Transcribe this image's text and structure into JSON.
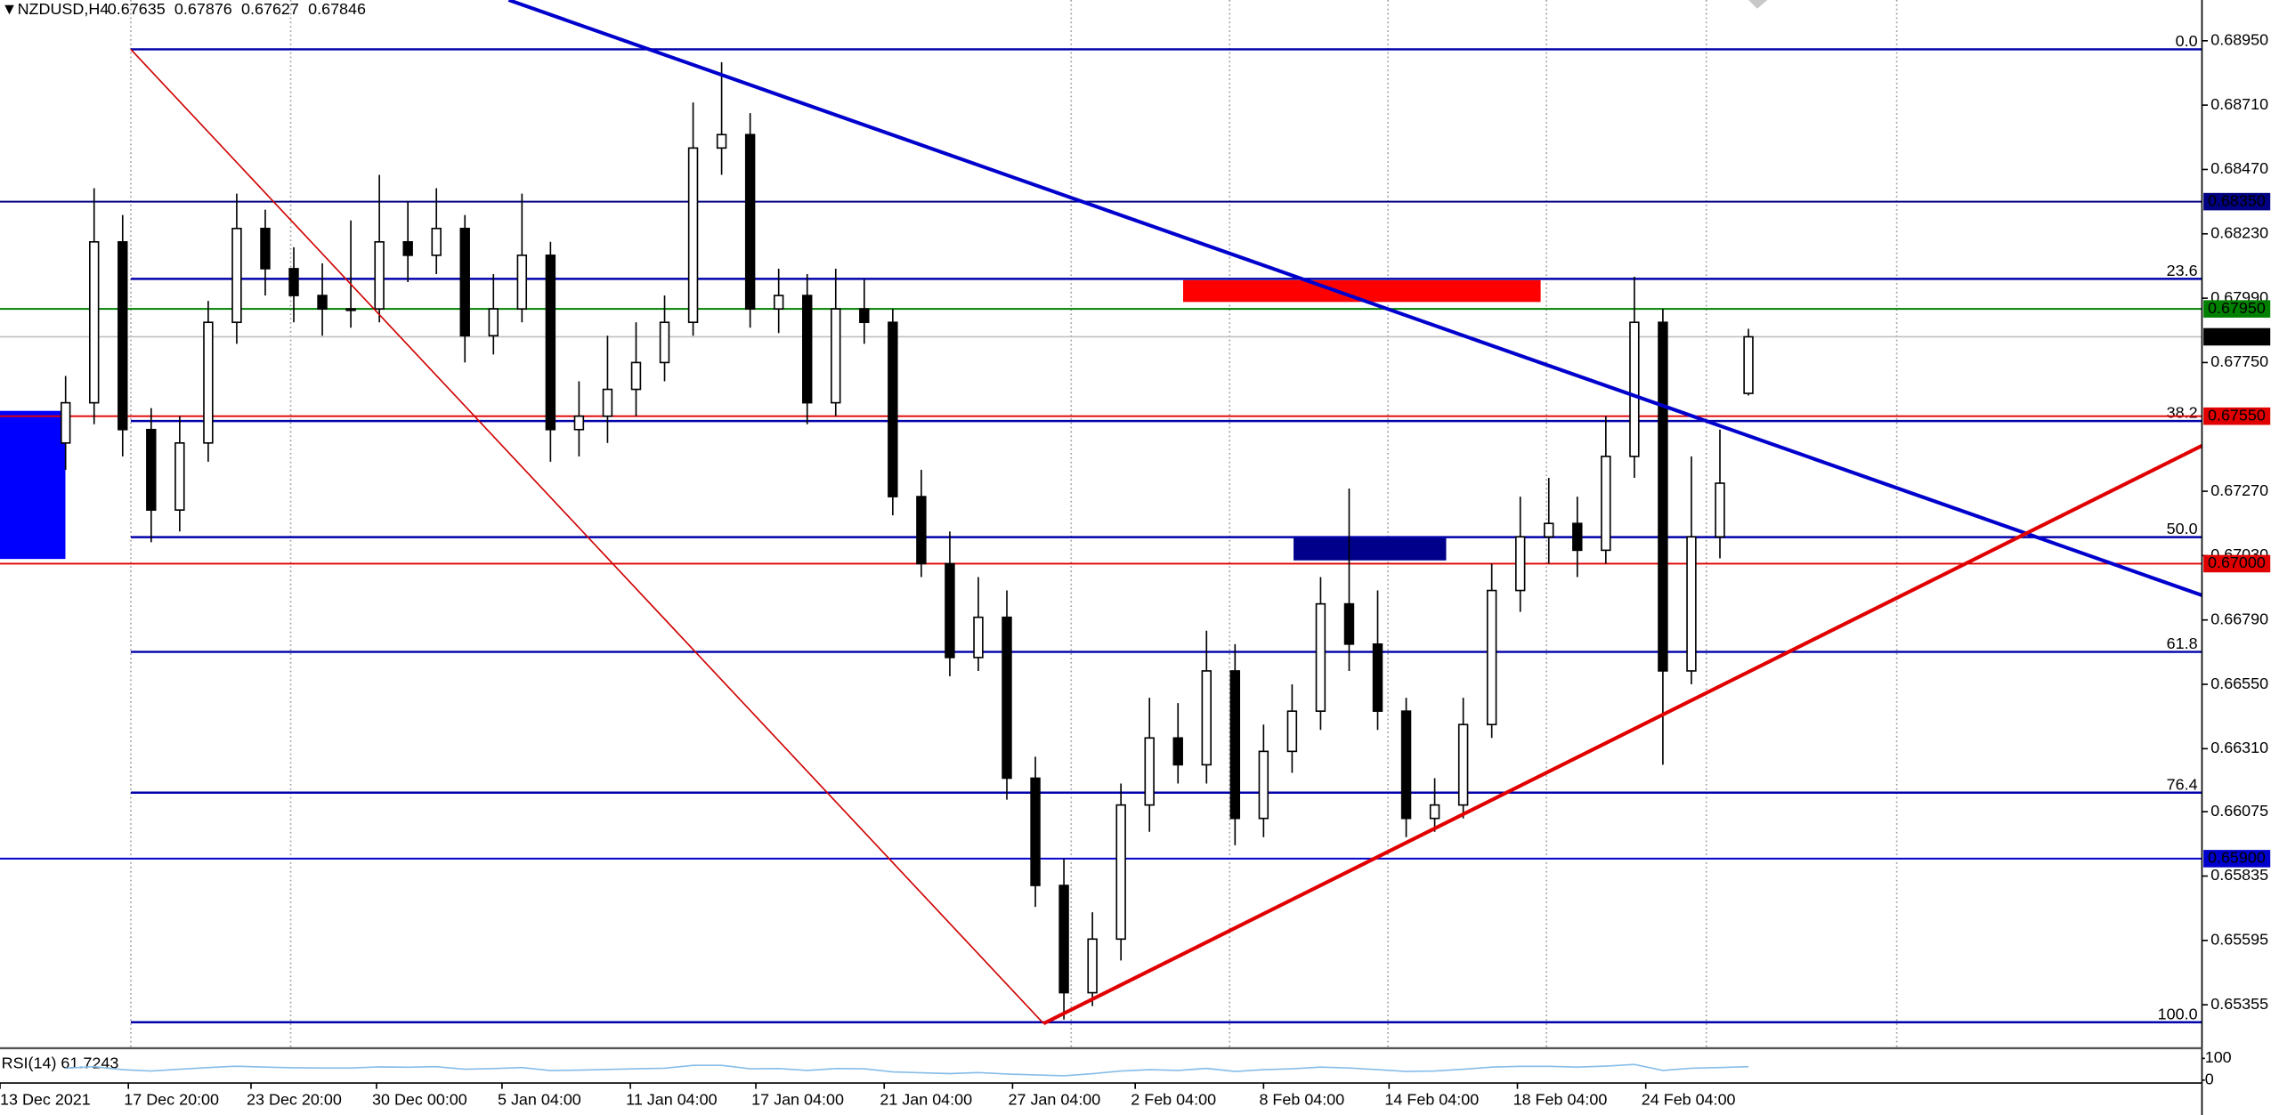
{
  "chart_data": {
    "type": "candlestick",
    "title": "NZDUSD,H4",
    "open": [
      0.6745,
      0.676,
      0.682,
      0.675,
      0.672,
      0.6745,
      0.679,
      0.6825,
      0.681,
      0.68,
      0.6795,
      0.6795,
      0.682,
      0.6815,
      0.6825,
      0.6785,
      0.6795,
      0.6815,
      0.675,
      0.6755,
      0.6765,
      0.6775,
      0.679,
      0.6855,
      0.686,
      0.6795,
      0.68,
      0.676,
      0.6795,
      0.679,
      0.6725,
      0.67,
      0.6665,
      0.668,
      0.662,
      0.658,
      0.654,
      0.656,
      0.661,
      0.6635,
      0.6625,
      0.666,
      0.6605,
      0.663,
      0.6645,
      0.6685,
      0.667,
      0.6645,
      0.6605,
      0.661,
      0.664,
      0.669,
      0.671,
      0.6715,
      0.6705,
      0.674,
      0.679,
      0.666,
      0.671,
      0.67635
    ],
    "high": [
      0.677,
      0.684,
      0.683,
      0.6758,
      0.6755,
      0.6798,
      0.6838,
      0.6832,
      0.6818,
      0.6812,
      0.6828,
      0.6845,
      0.6835,
      0.684,
      0.683,
      0.6808,
      0.6838,
      0.682,
      0.6768,
      0.6785,
      0.679,
      0.68,
      0.6872,
      0.6887,
      0.6868,
      0.681,
      0.6808,
      0.681,
      0.6806,
      0.6795,
      0.6735,
      0.6712,
      0.6695,
      0.669,
      0.6628,
      0.659,
      0.657,
      0.6618,
      0.665,
      0.6648,
      0.6675,
      0.667,
      0.664,
      0.6655,
      0.6695,
      0.6728,
      0.669,
      0.665,
      0.662,
      0.665,
      0.67,
      0.6725,
      0.6732,
      0.6725,
      0.6755,
      0.6807,
      0.6795,
      0.674,
      0.675,
      0.67876
    ],
    "low": [
      0.6735,
      0.6752,
      0.674,
      0.6708,
      0.6712,
      0.6738,
      0.6782,
      0.68,
      0.679,
      0.6785,
      0.6788,
      0.679,
      0.6805,
      0.6808,
      0.6775,
      0.6778,
      0.679,
      0.6738,
      0.674,
      0.6745,
      0.6755,
      0.6768,
      0.6785,
      0.6845,
      0.6788,
      0.6786,
      0.6752,
      0.6755,
      0.6782,
      0.6718,
      0.6695,
      0.6658,
      0.666,
      0.6612,
      0.6572,
      0.653,
      0.6535,
      0.6552,
      0.66,
      0.6618,
      0.6618,
      0.6595,
      0.6598,
      0.6622,
      0.6638,
      0.666,
      0.6638,
      0.6598,
      0.66,
      0.6605,
      0.6635,
      0.6682,
      0.67,
      0.6695,
      0.67,
      0.6732,
      0.6625,
      0.6655,
      0.6702,
      0.67627
    ],
    "close": [
      0.676,
      0.682,
      0.675,
      0.672,
      0.6745,
      0.679,
      0.6825,
      0.681,
      0.68,
      0.6795,
      0.6795,
      0.682,
      0.6815,
      0.6825,
      0.6785,
      0.6795,
      0.6815,
      0.675,
      0.6755,
      0.6765,
      0.6775,
      0.679,
      0.6855,
      0.686,
      0.6795,
      0.68,
      0.676,
      0.6795,
      0.679,
      0.6725,
      0.67,
      0.6665,
      0.668,
      0.662,
      0.658,
      0.654,
      0.656,
      0.661,
      0.6635,
      0.6625,
      0.666,
      0.6605,
      0.663,
      0.6645,
      0.6685,
      0.667,
      0.6645,
      0.6605,
      0.661,
      0.664,
      0.669,
      0.671,
      0.6715,
      0.6705,
      0.674,
      0.679,
      0.666,
      0.671,
      0.673,
      0.67846
    ],
    "colors": {
      "up": "#ffffff",
      "down": "#000000",
      "outline": "#000000"
    },
    "xlim": [
      -2.3,
      74.9
    ],
    "xticks": [
      {
        "value": -2.3,
        "label": "13 Dec 2021"
      },
      {
        "value": 2.2,
        "label": "17 Dec 20:00"
      },
      {
        "value": 6.5,
        "label": "23 Dec 20:00"
      },
      {
        "value": 10.9,
        "label": "30 Dec 00:00"
      },
      {
        "value": 15.3,
        "label": "5 Jan 04:00"
      },
      {
        "value": 19.8,
        "label": "11 Jan 04:00"
      },
      {
        "value": 24.2,
        "label": "17 Jan 04:00"
      },
      {
        "value": 28.7,
        "label": "21 Jan 04:00"
      },
      {
        "value": 33.2,
        "label": "27 Jan 04:00"
      },
      {
        "value": 37.5,
        "label": "2 Feb 04:00"
      },
      {
        "value": 42,
        "label": "8 Feb 04:00"
      },
      {
        "value": 46.4,
        "label": "14 Feb 04:00"
      },
      {
        "value": 50.9,
        "label": "18 Feb 04:00"
      },
      {
        "value": 55.4,
        "label": "24 Feb 04:00"
      }
    ],
    "ylim": [
      0.65193,
      0.69102
    ],
    "yticks": [
      {
        "value": 0.6895,
        "label": "0.68950"
      },
      {
        "value": 0.6871,
        "label": "0.68710"
      },
      {
        "value": 0.6847,
        "label": "0.68470"
      },
      {
        "value": 0.6823,
        "label": "0.68230"
      },
      {
        "value": 0.6799,
        "label": "0.67990"
      },
      {
        "value": 0.6775,
        "label": "0.67750"
      },
      {
        "value": 0.6727,
        "label": "0.67270"
      },
      {
        "value": 0.6703,
        "label": "0.67030"
      },
      {
        "value": 0.6679,
        "label": "0.66790"
      },
      {
        "value": 0.6655,
        "label": "0.66550"
      },
      {
        "value": 0.6631,
        "label": "0.66310"
      },
      0.66075,
      {
        "value": 0.65835,
        "label": "0.65835"
      },
      {
        "value": 0.65595,
        "label": "0.65595"
      },
      {
        "value": 0.65355,
        "label": "0.65355"
      }
    ],
    "levels": [
      {
        "value": 0.6835,
        "label": "0.68350",
        "color": "#000080"
      },
      {
        "value": 0.6795,
        "label": "0.67950",
        "color": "#008000"
      },
      {
        "value": 0.6755,
        "label": "0.67550",
        "color": "#e00000"
      },
      {
        "value": 0.67,
        "label": "0.67000",
        "color": "#e00000"
      },
      {
        "value": 0.659,
        "label": "0.65900",
        "color": "#0000cd"
      }
    ],
    "fib_levels": [
      {
        "value": 0.68918,
        "label": "0.0"
      },
      {
        "value": 0.68062,
        "label": "23.6"
      },
      {
        "value": 0.67532,
        "label": "38.2"
      },
      {
        "value": 0.67099,
        "label": "50.0"
      },
      {
        "value": 0.66671,
        "label": "61.8"
      },
      {
        "value": 0.66146,
        "label": "76.4"
      },
      {
        "value": 0.6529,
        "label": "100.0"
      }
    ],
    "rsi": {
      "label": "RSI(14) 61.7243",
      "ylim": [
        0,
        100
      ],
      "yticks": [
        0,
        100
      ],
      "color": "#87bde8",
      "values": [
        55,
        62,
        48,
        42,
        50,
        58,
        64,
        60,
        57,
        56,
        56,
        61,
        59,
        62,
        50,
        53,
        58,
        44,
        46,
        49,
        52,
        55,
        68,
        68,
        52,
        53,
        45,
        53,
        52,
        38,
        34,
        30,
        35,
        28,
        24,
        20,
        30,
        42,
        48,
        45,
        54,
        40,
        48,
        52,
        60,
        56,
        48,
        40,
        42,
        50,
        60,
        63,
        63,
        60,
        65,
        72,
        45,
        55,
        58,
        61.7243
      ]
    }
  }
}
